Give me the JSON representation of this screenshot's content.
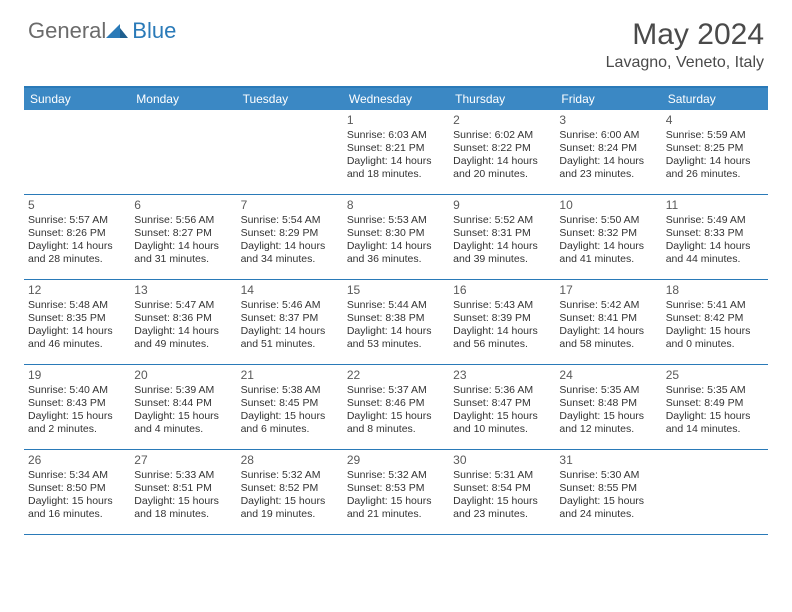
{
  "logo": {
    "general": "General",
    "blue": "Blue"
  },
  "title": "May 2024",
  "location": "Lavagno, Veneto, Italy",
  "colors": {
    "header_bg": "#3b88c4",
    "border": "#2a7ab8",
    "text_gray": "#6b6b6b",
    "text_dark": "#4a4a4a"
  },
  "weekdays": [
    "Sunday",
    "Monday",
    "Tuesday",
    "Wednesday",
    "Thursday",
    "Friday",
    "Saturday"
  ],
  "weeks": [
    [
      null,
      null,
      null,
      {
        "n": "1",
        "sr": "6:03 AM",
        "ss": "8:21 PM",
        "dl": "14 hours and 18 minutes."
      },
      {
        "n": "2",
        "sr": "6:02 AM",
        "ss": "8:22 PM",
        "dl": "14 hours and 20 minutes."
      },
      {
        "n": "3",
        "sr": "6:00 AM",
        "ss": "8:24 PM",
        "dl": "14 hours and 23 minutes."
      },
      {
        "n": "4",
        "sr": "5:59 AM",
        "ss": "8:25 PM",
        "dl": "14 hours and 26 minutes."
      }
    ],
    [
      {
        "n": "5",
        "sr": "5:57 AM",
        "ss": "8:26 PM",
        "dl": "14 hours and 28 minutes."
      },
      {
        "n": "6",
        "sr": "5:56 AM",
        "ss": "8:27 PM",
        "dl": "14 hours and 31 minutes."
      },
      {
        "n": "7",
        "sr": "5:54 AM",
        "ss": "8:29 PM",
        "dl": "14 hours and 34 minutes."
      },
      {
        "n": "8",
        "sr": "5:53 AM",
        "ss": "8:30 PM",
        "dl": "14 hours and 36 minutes."
      },
      {
        "n": "9",
        "sr": "5:52 AM",
        "ss": "8:31 PM",
        "dl": "14 hours and 39 minutes."
      },
      {
        "n": "10",
        "sr": "5:50 AM",
        "ss": "8:32 PM",
        "dl": "14 hours and 41 minutes."
      },
      {
        "n": "11",
        "sr": "5:49 AM",
        "ss": "8:33 PM",
        "dl": "14 hours and 44 minutes."
      }
    ],
    [
      {
        "n": "12",
        "sr": "5:48 AM",
        "ss": "8:35 PM",
        "dl": "14 hours and 46 minutes."
      },
      {
        "n": "13",
        "sr": "5:47 AM",
        "ss": "8:36 PM",
        "dl": "14 hours and 49 minutes."
      },
      {
        "n": "14",
        "sr": "5:46 AM",
        "ss": "8:37 PM",
        "dl": "14 hours and 51 minutes."
      },
      {
        "n": "15",
        "sr": "5:44 AM",
        "ss": "8:38 PM",
        "dl": "14 hours and 53 minutes."
      },
      {
        "n": "16",
        "sr": "5:43 AM",
        "ss": "8:39 PM",
        "dl": "14 hours and 56 minutes."
      },
      {
        "n": "17",
        "sr": "5:42 AM",
        "ss": "8:41 PM",
        "dl": "14 hours and 58 minutes."
      },
      {
        "n": "18",
        "sr": "5:41 AM",
        "ss": "8:42 PM",
        "dl": "15 hours and 0 minutes."
      }
    ],
    [
      {
        "n": "19",
        "sr": "5:40 AM",
        "ss": "8:43 PM",
        "dl": "15 hours and 2 minutes."
      },
      {
        "n": "20",
        "sr": "5:39 AM",
        "ss": "8:44 PM",
        "dl": "15 hours and 4 minutes."
      },
      {
        "n": "21",
        "sr": "5:38 AM",
        "ss": "8:45 PM",
        "dl": "15 hours and 6 minutes."
      },
      {
        "n": "22",
        "sr": "5:37 AM",
        "ss": "8:46 PM",
        "dl": "15 hours and 8 minutes."
      },
      {
        "n": "23",
        "sr": "5:36 AM",
        "ss": "8:47 PM",
        "dl": "15 hours and 10 minutes."
      },
      {
        "n": "24",
        "sr": "5:35 AM",
        "ss": "8:48 PM",
        "dl": "15 hours and 12 minutes."
      },
      {
        "n": "25",
        "sr": "5:35 AM",
        "ss": "8:49 PM",
        "dl": "15 hours and 14 minutes."
      }
    ],
    [
      {
        "n": "26",
        "sr": "5:34 AM",
        "ss": "8:50 PM",
        "dl": "15 hours and 16 minutes."
      },
      {
        "n": "27",
        "sr": "5:33 AM",
        "ss": "8:51 PM",
        "dl": "15 hours and 18 minutes."
      },
      {
        "n": "28",
        "sr": "5:32 AM",
        "ss": "8:52 PM",
        "dl": "15 hours and 19 minutes."
      },
      {
        "n": "29",
        "sr": "5:32 AM",
        "ss": "8:53 PM",
        "dl": "15 hours and 21 minutes."
      },
      {
        "n": "30",
        "sr": "5:31 AM",
        "ss": "8:54 PM",
        "dl": "15 hours and 23 minutes."
      },
      {
        "n": "31",
        "sr": "5:30 AM",
        "ss": "8:55 PM",
        "dl": "15 hours and 24 minutes."
      },
      null
    ]
  ],
  "labels": {
    "sunrise": "Sunrise:",
    "sunset": "Sunset:",
    "daylight": "Daylight:"
  }
}
